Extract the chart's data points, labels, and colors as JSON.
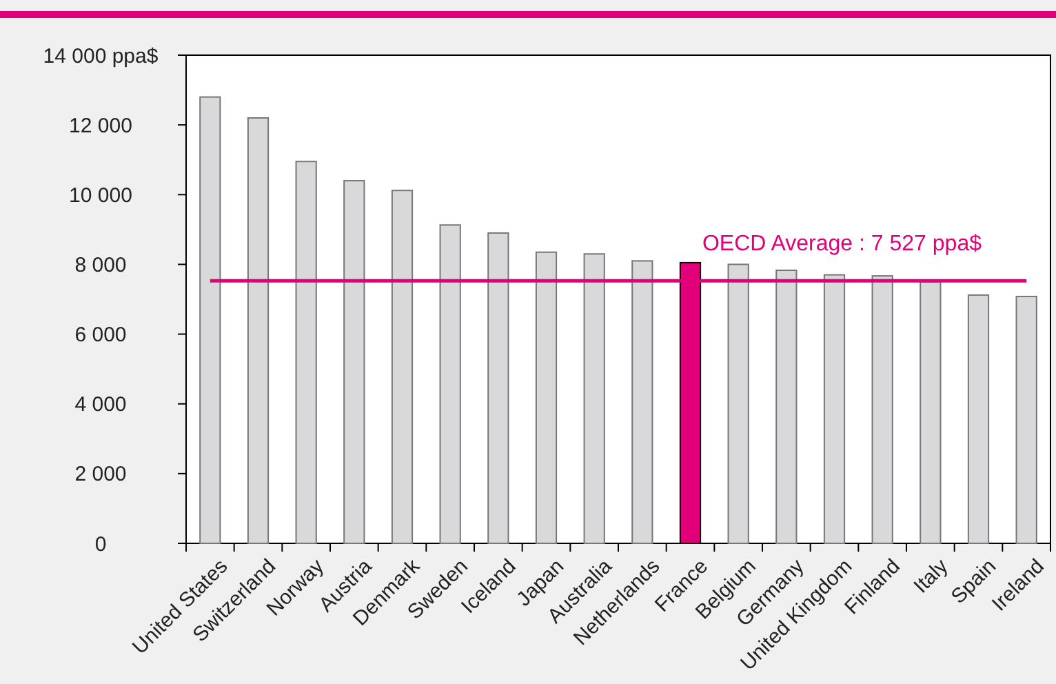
{
  "chart_data": {
    "type": "bar",
    "categories": [
      "United States",
      "Switzerland",
      "Norway",
      "Austria",
      "Denmark",
      "Sweden",
      "Iceland",
      "Japan",
      "Australia",
      "Netherlands",
      "France",
      "Belgium",
      "Germany",
      "United Kingdom",
      "Finland",
      "Italy",
      "Spain",
      "Ireland"
    ],
    "values": [
      12800,
      12200,
      10950,
      10400,
      10120,
      9130,
      8900,
      8350,
      8300,
      8100,
      8050,
      8000,
      7830,
      7700,
      7670,
      7500,
      7120,
      7080
    ],
    "colors": [
      "#d9d9db",
      "#d9d9db",
      "#d9d9db",
      "#d9d9db",
      "#d9d9db",
      "#d9d9db",
      "#d9d9db",
      "#d9d9db",
      "#d9d9db",
      "#d9d9db",
      "#e2007a",
      "#d9d9db",
      "#d9d9db",
      "#d9d9db",
      "#d9d9db",
      "#d9d9db",
      "#d9d9db",
      "#d9d9db"
    ],
    "ylim": [
      0,
      14000
    ],
    "yticks": [
      0,
      {
        "value": 2000,
        "label": "2 000"
      },
      {
        "value": 4000,
        "label": "4 000"
      },
      {
        "value": 6000,
        "label": "6 000"
      },
      {
        "value": 8000,
        "label": "8 000"
      },
      {
        "value": 10000,
        "label": "10 000"
      },
      {
        "value": 12000,
        "label": "12 000"
      },
      {
        "value": 14000,
        "label": "14 000 ppa$"
      }
    ],
    "ref_lines": [
      {
        "axis": "y",
        "value": 7527,
        "label": "OECD Average : 7 527 ppa$",
        "color": "#e2007a"
      }
    ],
    "grid": false
  }
}
